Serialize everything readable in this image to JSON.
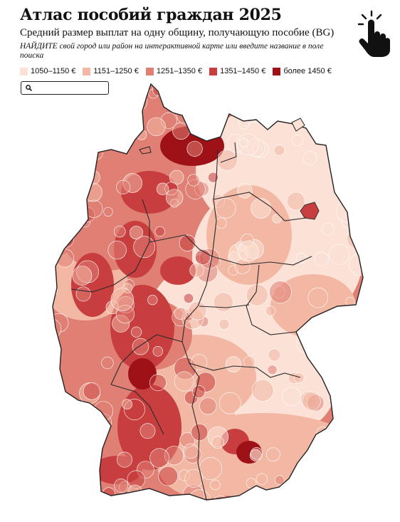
{
  "header": {
    "title": "Атлас пособий граждан 2025",
    "subtitle": "Средний размер выплат на одну общину, получающую пособие (BG)",
    "hint_emph": "НАЙДИТЕ",
    "hint_rest": " свой город или район на интерактивной карте или введите название в поле поиска"
  },
  "legend": [
    {
      "label": "1050–1150 €",
      "color": "#fbe1d6"
    },
    {
      "label": "1151–1250 €",
      "color": "#f3b8a4"
    },
    {
      "label": "1251–1350 €",
      "color": "#e07f74"
    },
    {
      "label": "1351–1450 €",
      "color": "#c83e3e"
    },
    {
      "label": "более 1450 €",
      "color": "#9e1217"
    }
  ],
  "search": {
    "placeholder": "",
    "icon": "search-icon"
  },
  "icons": {
    "pointer": "hand-pointer-icon"
  }
}
